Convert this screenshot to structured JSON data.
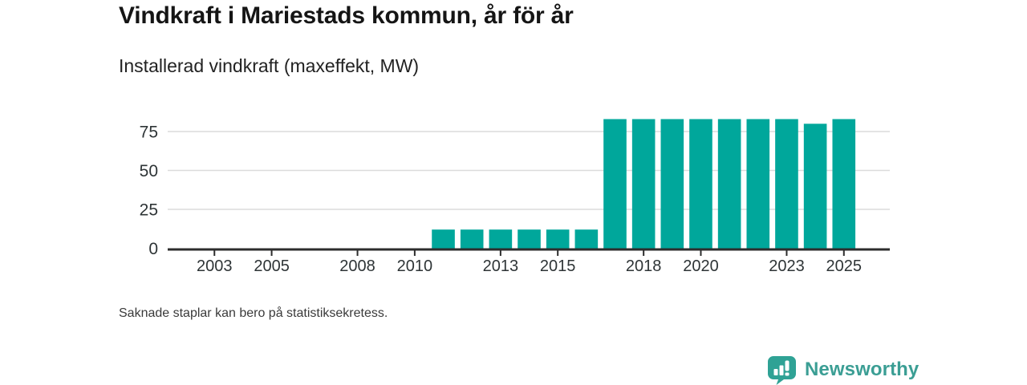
{
  "header": {
    "title": "Vindkraft i Mariestads kommun, år för år",
    "subtitle": "Installerad vindkraft (maxeffekt, MW)"
  },
  "chart_data": {
    "type": "bar",
    "title": "Vindkraft i Mariestads kommun, år för år",
    "ylabel": "Installerad vindkraft (maxeffekt, MW)",
    "xlabel": "",
    "unit": "MW",
    "categories": [
      2002,
      2003,
      2004,
      2005,
      2006,
      2007,
      2008,
      2009,
      2010,
      2011,
      2012,
      2013,
      2014,
      2015,
      2016,
      2017,
      2018,
      2019,
      2020,
      2021,
      2022,
      2023,
      2024,
      2025
    ],
    "values": [
      null,
      null,
      null,
      null,
      null,
      null,
      null,
      null,
      null,
      12,
      12,
      12,
      12,
      12,
      12,
      83,
      83,
      83,
      83,
      83,
      83,
      83,
      80,
      83
    ],
    "x_ticks": [
      2003,
      2005,
      2008,
      2010,
      2013,
      2015,
      2018,
      2020,
      2023,
      2025
    ],
    "y_ticks": [
      0,
      25,
      50,
      75
    ],
    "ylim": [
      0,
      87
    ],
    "grid": true,
    "legend_position": "none",
    "bar_color": "#00A79B",
    "grid_color": "#DCDCDC",
    "axis_color": "#2D2D2D",
    "tick_label_color": "#2E3436"
  },
  "footnote": {
    "text": "Saknade staplar kan bero på statistiksekretess."
  },
  "brand": {
    "name": "Newsworthy",
    "icon": "newsworthy-chart-bubble-icon",
    "icon_color": "#2FA295",
    "text_color": "#3B9E94"
  }
}
